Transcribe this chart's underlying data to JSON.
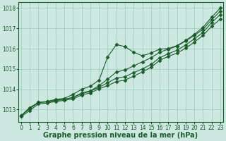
{
  "title": "Graphe pression niveau de la mer (hPa)",
  "xlabel_hours": [
    0,
    1,
    2,
    3,
    4,
    5,
    6,
    7,
    8,
    9,
    10,
    11,
    12,
    13,
    14,
    15,
    16,
    17,
    18,
    19,
    20,
    21,
    22,
    23
  ],
  "ylim": [
    1012.4,
    1018.3
  ],
  "yticks": [
    1013,
    1014,
    1015,
    1016,
    1017,
    1018
  ],
  "background_color": "#cce8e0",
  "grid_color": "#99ccbb",
  "line_color": "#1a5c2a",
  "line1": [
    1012.7,
    1013.1,
    1013.35,
    1013.4,
    1013.5,
    1013.55,
    1013.75,
    1014.0,
    1014.15,
    1014.45,
    1015.6,
    1016.2,
    1016.1,
    1015.82,
    1015.65,
    1015.78,
    1015.98,
    1016.0,
    1016.15,
    1016.4,
    1016.7,
    1017.05,
    1017.55,
    1018.0
  ],
  "line2": [
    1012.7,
    1013.05,
    1013.35,
    1013.38,
    1013.45,
    1013.5,
    1013.6,
    1013.82,
    1013.92,
    1014.18,
    1014.5,
    1014.85,
    1014.95,
    1015.15,
    1015.35,
    1015.55,
    1015.82,
    1015.98,
    1016.12,
    1016.38,
    1016.65,
    1016.95,
    1017.42,
    1017.85
  ],
  "line3": [
    1012.7,
    1013.05,
    1013.35,
    1013.38,
    1013.45,
    1013.5,
    1013.6,
    1013.78,
    1013.9,
    1014.1,
    1014.32,
    1014.55,
    1014.62,
    1014.82,
    1015.0,
    1015.22,
    1015.55,
    1015.75,
    1015.92,
    1016.18,
    1016.48,
    1016.8,
    1017.28,
    1017.68
  ],
  "line4": [
    1012.65,
    1012.95,
    1013.28,
    1013.32,
    1013.4,
    1013.45,
    1013.52,
    1013.72,
    1013.82,
    1014.02,
    1014.18,
    1014.38,
    1014.45,
    1014.65,
    1014.85,
    1015.08,
    1015.42,
    1015.62,
    1015.78,
    1016.02,
    1016.32,
    1016.65,
    1017.1,
    1017.45
  ],
  "marker": "D",
  "marker_size": 2.5,
  "line_width": 0.8,
  "title_fontsize": 7.0,
  "tick_fontsize": 5.5
}
